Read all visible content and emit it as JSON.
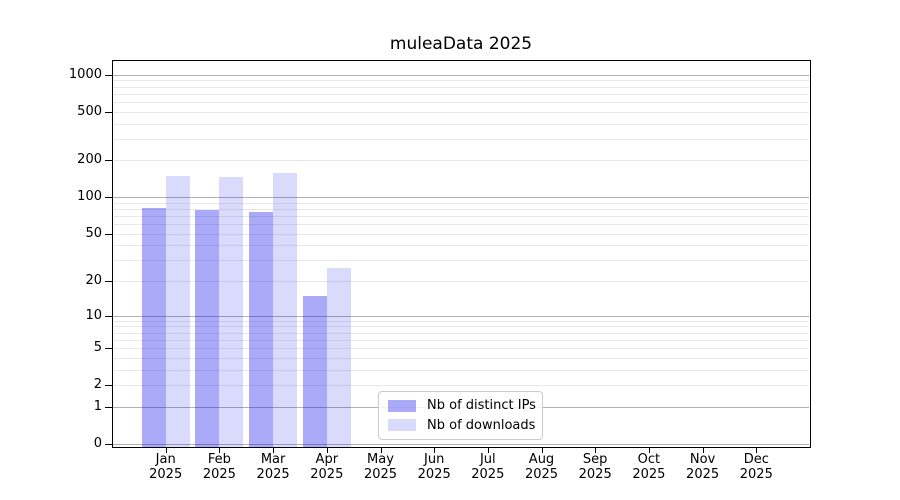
{
  "title": "muleaData 2025",
  "chart_data": {
    "type": "bar",
    "title": "muleaData 2025",
    "scale": "log-like (log10(1+v)), symlog appearance with 0 at baseline",
    "categories": [
      "Jan",
      "Feb",
      "Mar",
      "Apr",
      "May",
      "Jun",
      "Jul",
      "Aug",
      "Sep",
      "Oct",
      "Nov",
      "Dec"
    ],
    "category_year": "2025",
    "series": [
      {
        "name": "Nb of distinct IPs",
        "color": "rgba(20,20,235,0.36)",
        "values": [
          82,
          79,
          76,
          15,
          null,
          null,
          null,
          null,
          null,
          null,
          null,
          null
        ]
      },
      {
        "name": "Nb of downloads",
        "color": "rgba(20,20,235,0.155)",
        "values": [
          150,
          146,
          157,
          26,
          null,
          null,
          null,
          null,
          null,
          null,
          null,
          null
        ]
      }
    ],
    "yticks": [
      0,
      1,
      2,
      5,
      10,
      20,
      50,
      100,
      200,
      500,
      1000
    ],
    "major_gridline_values": [
      0,
      1,
      10,
      100,
      1000
    ],
    "minor_gridline_values": [
      2,
      3,
      4,
      5,
      6,
      7,
      8,
      9,
      20,
      30,
      40,
      50,
      60,
      70,
      80,
      90,
      200,
      300,
      400,
      500,
      600,
      700,
      800,
      900
    ],
    "ylim_top_approx": 1300,
    "grid": true,
    "legend_position": "inside plot, lower center-left"
  },
  "colors": {
    "bar_distinct_ips": "rgba(20,20,235,0.36)",
    "bar_downloads": "rgba(20,20,235,0.155)",
    "grid_major": "#b0b0b0",
    "grid_minor": "#e8e8e8",
    "axis": "#000000",
    "legend_border": "#cccccc",
    "text": "#000000"
  }
}
